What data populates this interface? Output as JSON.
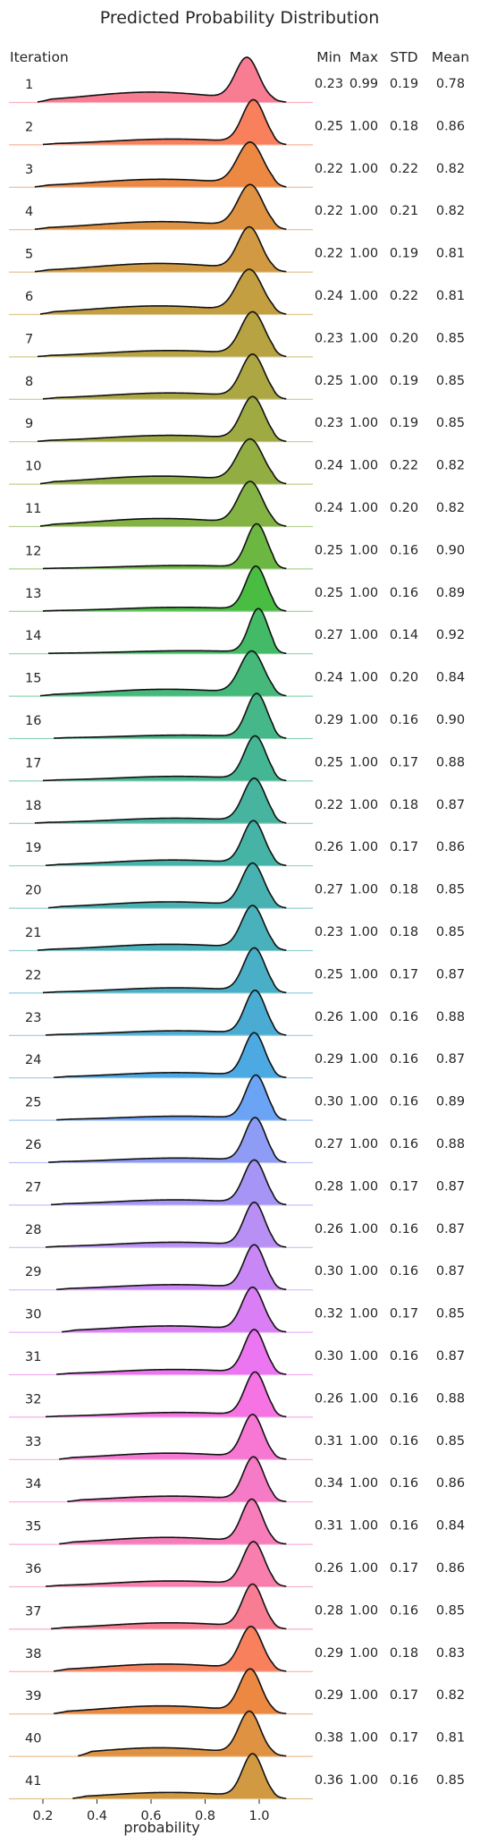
{
  "chart_data": {
    "type": "area",
    "subtype": "ridgeline",
    "title": "Predicted Probability Distribution",
    "xlabel": "probability",
    "ylabel": "Iteration",
    "xlim": [
      0.15,
      1.2
    ],
    "xticks": [
      0.2,
      0.4,
      0.6,
      0.8,
      1.0
    ],
    "xtick_labels": [
      "0.2",
      "0.4",
      "0.6",
      "0.8",
      "1.0"
    ],
    "grid": false,
    "legend": "none",
    "stats_columns": [
      "Min",
      "Max",
      "STD",
      "Mean"
    ],
    "colors": [
      "#f77189",
      "#f7754f",
      "#ec7e33",
      "#dc8932",
      "#cd9132",
      "#bf9732",
      "#b29b32",
      "#a59f32",
      "#97a332",
      "#89a732",
      "#78ac32",
      "#5fb132",
      "#3ab632",
      "#33b559",
      "#34b36f",
      "#35b17e",
      "#35b08a",
      "#36ae96",
      "#36ada0",
      "#37abaa",
      "#38aab5",
      "#39a8c1",
      "#3ba5ce",
      "#3ea2df",
      "#5e9bf4",
      "#8594f4",
      "#9e8cf4",
      "#b285f4",
      "#c47cf4",
      "#d673f4",
      "#ea69f0",
      "#f467df",
      "#f56dcf",
      "#f570c1",
      "#f672b4",
      "#f673a6"
    ],
    "series": [
      {
        "name": "1",
        "min": 0.23,
        "max": 0.99,
        "std": 0.19,
        "mean": 0.78,
        "stats": [
          "0.23",
          "0.99",
          "0.19",
          "0.78"
        ]
      },
      {
        "name": "2",
        "min": 0.25,
        "max": 1.0,
        "std": 0.18,
        "mean": 0.86,
        "stats": [
          "0.25",
          "1.00",
          "0.18",
          "0.86"
        ]
      },
      {
        "name": "3",
        "min": 0.22,
        "max": 1.0,
        "std": 0.22,
        "mean": 0.82,
        "stats": [
          "0.22",
          "1.00",
          "0.22",
          "0.82"
        ]
      },
      {
        "name": "4",
        "min": 0.22,
        "max": 1.0,
        "std": 0.21,
        "mean": 0.82,
        "stats": [
          "0.22",
          "1.00",
          "0.21",
          "0.82"
        ]
      },
      {
        "name": "5",
        "min": 0.22,
        "max": 1.0,
        "std": 0.19,
        "mean": 0.81,
        "stats": [
          "0.22",
          "1.00",
          "0.19",
          "0.81"
        ]
      },
      {
        "name": "6",
        "min": 0.24,
        "max": 1.0,
        "std": 0.22,
        "mean": 0.81,
        "stats": [
          "0.24",
          "1.00",
          "0.22",
          "0.81"
        ]
      },
      {
        "name": "7",
        "min": 0.23,
        "max": 1.0,
        "std": 0.2,
        "mean": 0.85,
        "stats": [
          "0.23",
          "1.00",
          "0.20",
          "0.85"
        ]
      },
      {
        "name": "8",
        "min": 0.25,
        "max": 1.0,
        "std": 0.19,
        "mean": 0.85,
        "stats": [
          "0.25",
          "1.00",
          "0.19",
          "0.85"
        ]
      },
      {
        "name": "9",
        "min": 0.23,
        "max": 1.0,
        "std": 0.19,
        "mean": 0.85,
        "stats": [
          "0.23",
          "1.00",
          "0.19",
          "0.85"
        ]
      },
      {
        "name": "10",
        "min": 0.24,
        "max": 1.0,
        "std": 0.22,
        "mean": 0.82,
        "stats": [
          "0.24",
          "1.00",
          "0.22",
          "0.82"
        ]
      },
      {
        "name": "11",
        "min": 0.24,
        "max": 1.0,
        "std": 0.2,
        "mean": 0.82,
        "stats": [
          "0.24",
          "1.00",
          "0.20",
          "0.82"
        ]
      },
      {
        "name": "12",
        "min": 0.25,
        "max": 1.0,
        "std": 0.16,
        "mean": 0.9,
        "stats": [
          "0.25",
          "1.00",
          "0.16",
          "0.90"
        ]
      },
      {
        "name": "13",
        "min": 0.25,
        "max": 1.0,
        "std": 0.16,
        "mean": 0.89,
        "stats": [
          "0.25",
          "1.00",
          "0.16",
          "0.89"
        ]
      },
      {
        "name": "14",
        "min": 0.27,
        "max": 1.0,
        "std": 0.14,
        "mean": 0.92,
        "stats": [
          "0.27",
          "1.00",
          "0.14",
          "0.92"
        ]
      },
      {
        "name": "15",
        "min": 0.24,
        "max": 1.0,
        "std": 0.2,
        "mean": 0.84,
        "stats": [
          "0.24",
          "1.00",
          "0.20",
          "0.84"
        ]
      },
      {
        "name": "16",
        "min": 0.29,
        "max": 1.0,
        "std": 0.16,
        "mean": 0.9,
        "stats": [
          "0.29",
          "1.00",
          "0.16",
          "0.90"
        ]
      },
      {
        "name": "17",
        "min": 0.25,
        "max": 1.0,
        "std": 0.17,
        "mean": 0.88,
        "stats": [
          "0.25",
          "1.00",
          "0.17",
          "0.88"
        ]
      },
      {
        "name": "18",
        "min": 0.22,
        "max": 1.0,
        "std": 0.18,
        "mean": 0.87,
        "stats": [
          "0.22",
          "1.00",
          "0.18",
          "0.87"
        ]
      },
      {
        "name": "19",
        "min": 0.26,
        "max": 1.0,
        "std": 0.17,
        "mean": 0.86,
        "stats": [
          "0.26",
          "1.00",
          "0.17",
          "0.86"
        ]
      },
      {
        "name": "20",
        "min": 0.27,
        "max": 1.0,
        "std": 0.18,
        "mean": 0.85,
        "stats": [
          "0.27",
          "1.00",
          "0.18",
          "0.85"
        ]
      },
      {
        "name": "21",
        "min": 0.23,
        "max": 1.0,
        "std": 0.18,
        "mean": 0.85,
        "stats": [
          "0.23",
          "1.00",
          "0.18",
          "0.85"
        ]
      },
      {
        "name": "22",
        "min": 0.25,
        "max": 1.0,
        "std": 0.17,
        "mean": 0.87,
        "stats": [
          "0.25",
          "1.00",
          "0.17",
          "0.87"
        ]
      },
      {
        "name": "23",
        "min": 0.26,
        "max": 1.0,
        "std": 0.16,
        "mean": 0.88,
        "stats": [
          "0.26",
          "1.00",
          "0.16",
          "0.88"
        ]
      },
      {
        "name": "24",
        "min": 0.29,
        "max": 1.0,
        "std": 0.16,
        "mean": 0.87,
        "stats": [
          "0.29",
          "1.00",
          "0.16",
          "0.87"
        ]
      },
      {
        "name": "25",
        "min": 0.3,
        "max": 1.0,
        "std": 0.16,
        "mean": 0.89,
        "stats": [
          "0.30",
          "1.00",
          "0.16",
          "0.89"
        ]
      },
      {
        "name": "26",
        "min": 0.27,
        "max": 1.0,
        "std": 0.16,
        "mean": 0.88,
        "stats": [
          "0.27",
          "1.00",
          "0.16",
          "0.88"
        ]
      },
      {
        "name": "27",
        "min": 0.28,
        "max": 1.0,
        "std": 0.17,
        "mean": 0.87,
        "stats": [
          "0.28",
          "1.00",
          "0.17",
          "0.87"
        ]
      },
      {
        "name": "28",
        "min": 0.26,
        "max": 1.0,
        "std": 0.16,
        "mean": 0.87,
        "stats": [
          "0.26",
          "1.00",
          "0.16",
          "0.87"
        ]
      },
      {
        "name": "29",
        "min": 0.3,
        "max": 1.0,
        "std": 0.16,
        "mean": 0.87,
        "stats": [
          "0.30",
          "1.00",
          "0.16",
          "0.87"
        ]
      },
      {
        "name": "30",
        "min": 0.32,
        "max": 1.0,
        "std": 0.17,
        "mean": 0.85,
        "stats": [
          "0.32",
          "1.00",
          "0.17",
          "0.85"
        ]
      },
      {
        "name": "31",
        "min": 0.3,
        "max": 1.0,
        "std": 0.16,
        "mean": 0.87,
        "stats": [
          "0.30",
          "1.00",
          "0.16",
          "0.87"
        ]
      },
      {
        "name": "32",
        "min": 0.26,
        "max": 1.0,
        "std": 0.16,
        "mean": 0.88,
        "stats": [
          "0.26",
          "1.00",
          "0.16",
          "0.88"
        ]
      },
      {
        "name": "33",
        "min": 0.31,
        "max": 1.0,
        "std": 0.16,
        "mean": 0.85,
        "stats": [
          "0.31",
          "1.00",
          "0.16",
          "0.85"
        ]
      },
      {
        "name": "34",
        "min": 0.34,
        "max": 1.0,
        "std": 0.16,
        "mean": 0.86,
        "stats": [
          "0.34",
          "1.00",
          "0.16",
          "0.86"
        ]
      },
      {
        "name": "35",
        "min": 0.31,
        "max": 1.0,
        "std": 0.16,
        "mean": 0.84,
        "stats": [
          "0.31",
          "1.00",
          "0.16",
          "0.84"
        ]
      },
      {
        "name": "36",
        "min": 0.26,
        "max": 1.0,
        "std": 0.17,
        "mean": 0.86,
        "stats": [
          "0.26",
          "1.00",
          "0.17",
          "0.86"
        ]
      },
      {
        "name": "37",
        "min": 0.28,
        "max": 1.0,
        "std": 0.16,
        "mean": 0.85,
        "stats": [
          "0.28",
          "1.00",
          "0.16",
          "0.85"
        ]
      },
      {
        "name": "38",
        "min": 0.29,
        "max": 1.0,
        "std": 0.18,
        "mean": 0.83,
        "stats": [
          "0.29",
          "1.00",
          "0.18",
          "0.83"
        ]
      },
      {
        "name": "39",
        "min": 0.29,
        "max": 1.0,
        "std": 0.17,
        "mean": 0.82,
        "stats": [
          "0.29",
          "1.00",
          "0.17",
          "0.82"
        ]
      },
      {
        "name": "40",
        "min": 0.38,
        "max": 1.0,
        "std": 0.17,
        "mean": 0.81,
        "stats": [
          "0.38",
          "1.00",
          "0.17",
          "0.81"
        ]
      },
      {
        "name": "41",
        "min": 0.36,
        "max": 1.0,
        "std": 0.16,
        "mean": 0.85,
        "stats": [
          "0.36",
          "1.00",
          "0.16",
          "0.85"
        ]
      }
    ]
  }
}
